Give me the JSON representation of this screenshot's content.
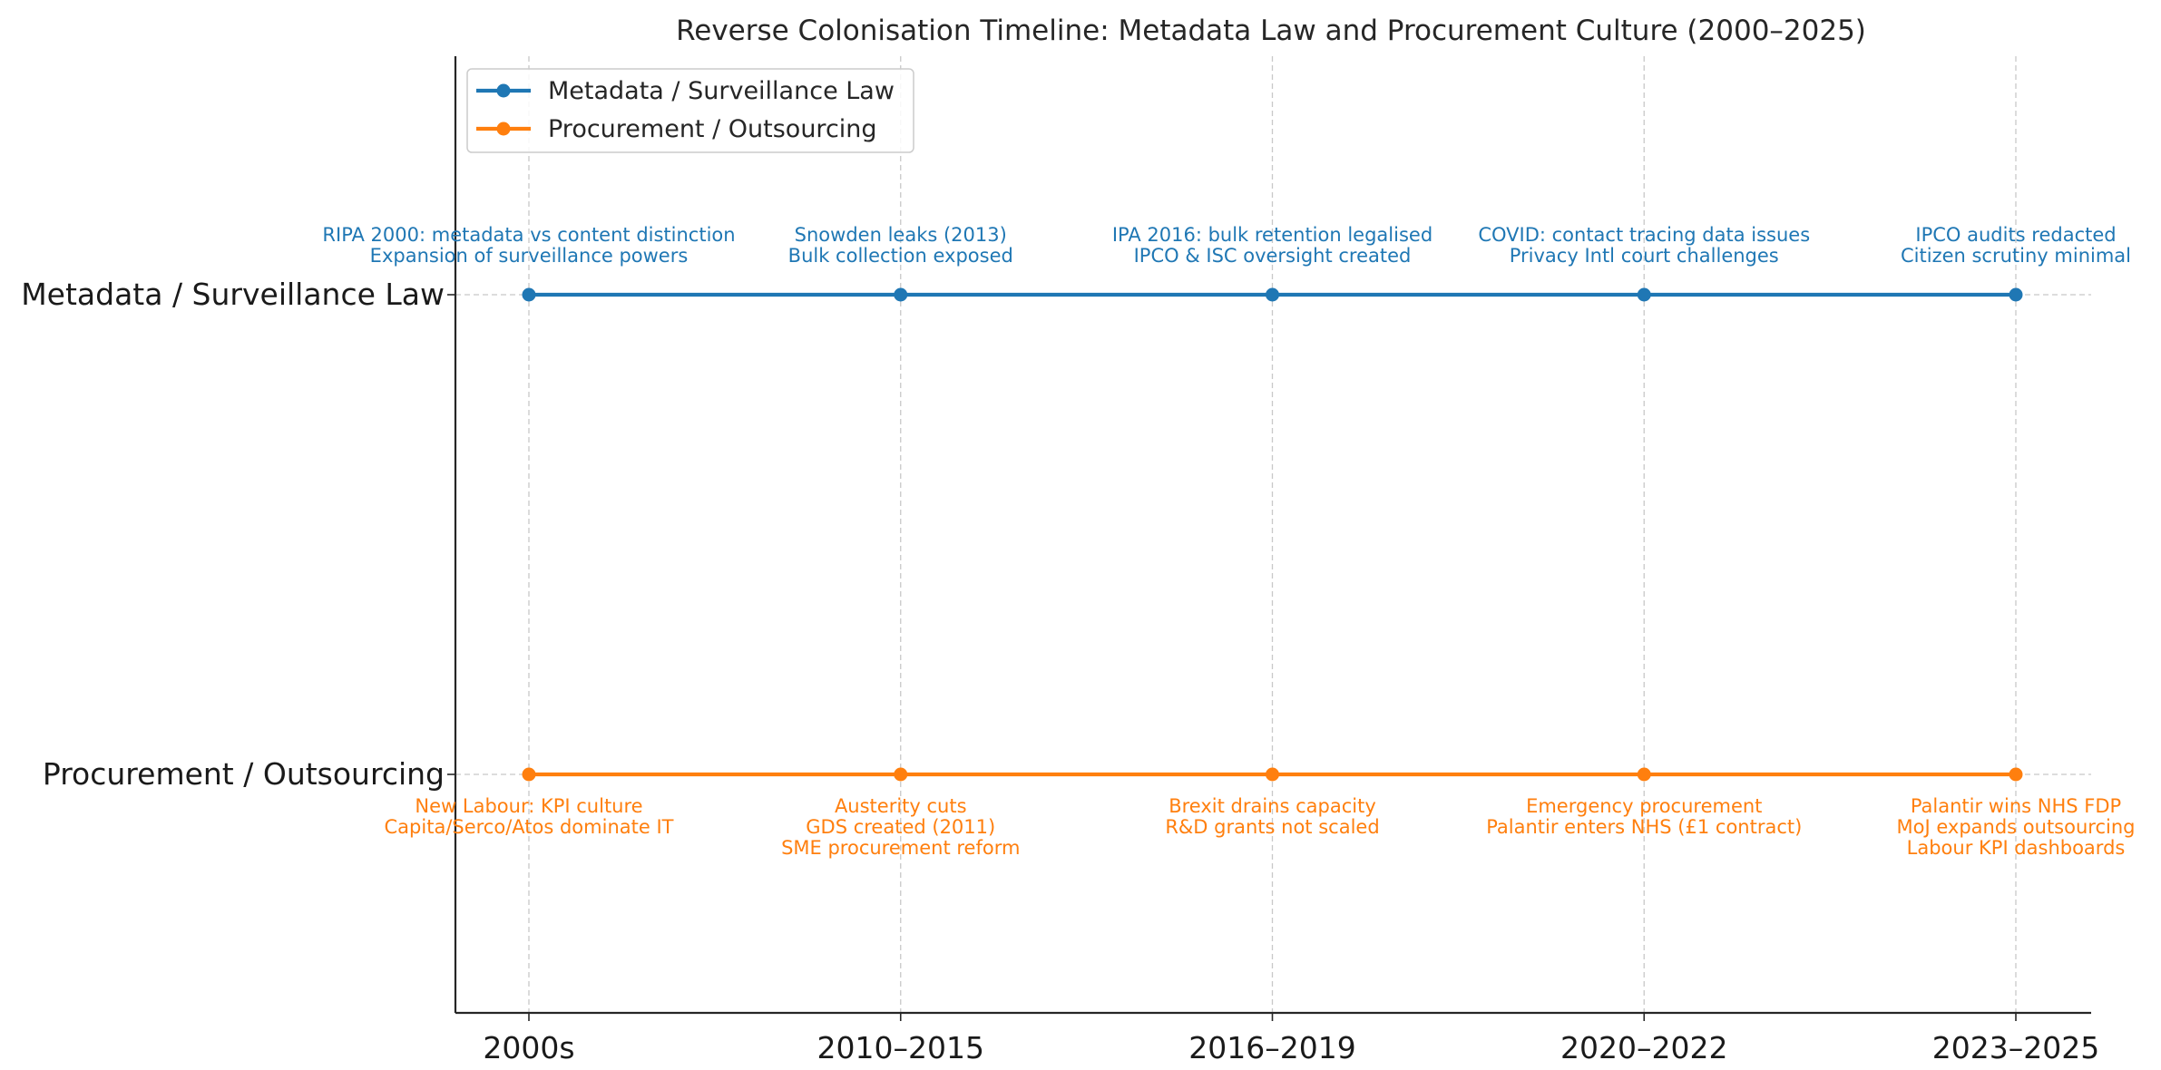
{
  "chart_data": {
    "type": "line",
    "title": "Reverse Colonisation Timeline: Metadata Law and Procurement Culture (2000–2025)",
    "xlabel": "",
    "ylabel": "",
    "categories": [
      "2000s",
      "2010–2015",
      "2016–2019",
      "2020–2022",
      "2023–2025"
    ],
    "y_categories": [
      "Metadata / Surveillance Law",
      "Procurement / Outsourcing"
    ],
    "grid": true,
    "legend_position": "top-left",
    "series": [
      {
        "name": "Metadata / Surveillance Law",
        "color": "#1f77b4",
        "y": "Metadata / Surveillance Law",
        "annotations_position": "above",
        "annotations": [
          [
            "RIPA 2000: metadata vs content distinction",
            "Expansion of surveillance powers"
          ],
          [
            "Snowden leaks (2013)",
            "Bulk collection exposed"
          ],
          [
            "IPA 2016: bulk retention legalised",
            "IPCO & ISC oversight created"
          ],
          [
            "COVID: contact tracing data issues",
            "Privacy Intl court challenges"
          ],
          [
            "IPCO audits redacted",
            "Citizen scrutiny minimal"
          ]
        ]
      },
      {
        "name": "Procurement / Outsourcing",
        "color": "#ff7f0e",
        "y": "Procurement / Outsourcing",
        "annotations_position": "below",
        "annotations": [
          [
            "New Labour: KPI culture",
            "Capita/Serco/Atos dominate IT"
          ],
          [
            "Austerity cuts",
            "GDS created (2011)",
            "SME procurement reform"
          ],
          [
            "Brexit drains capacity",
            "R&D grants not scaled"
          ],
          [
            "Emergency procurement",
            "Palantir enters NHS (£1 contract)"
          ],
          [
            "Palantir wins NHS FDP",
            "MoJ expands outsourcing",
            "Labour KPI dashboards"
          ]
        ]
      }
    ]
  }
}
